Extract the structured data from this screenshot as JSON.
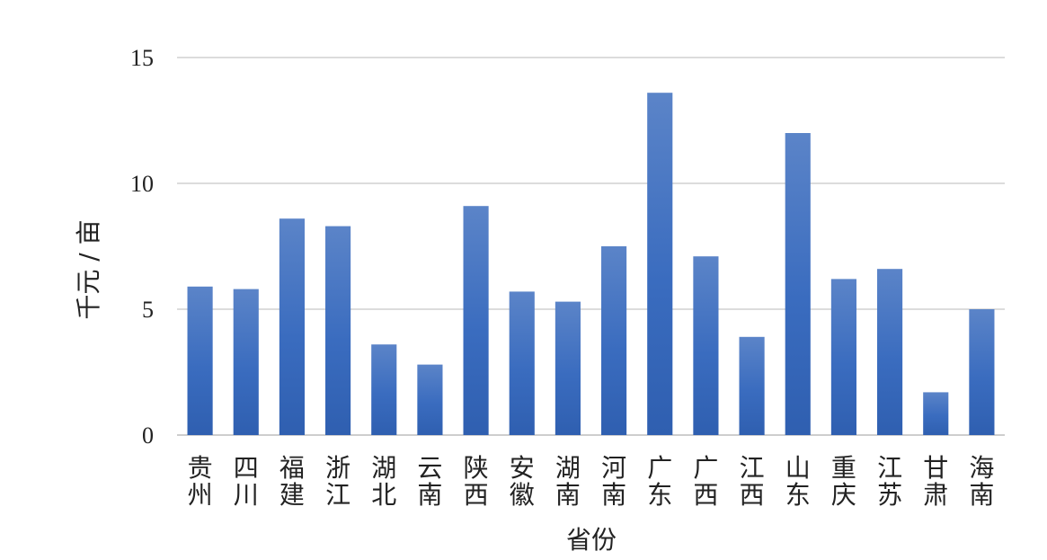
{
  "chart_data": {
    "type": "bar",
    "title": "",
    "xlabel": "省份",
    "ylabel": "千元 / 亩",
    "ylim": [
      0,
      15
    ],
    "yticks": [
      0,
      5,
      10,
      15
    ],
    "grid": true,
    "legend": "none",
    "categories": [
      "贵州",
      "四川",
      "福建",
      "浙江",
      "湖北",
      "云南",
      "陕西",
      "安徽",
      "湖南",
      "河南",
      "广东",
      "广西",
      "江西",
      "山东",
      "重庆",
      "江苏",
      "甘肃",
      "海南"
    ],
    "values": [
      5.9,
      5.8,
      8.6,
      8.3,
      3.6,
      2.8,
      9.1,
      5.7,
      5.3,
      7.5,
      13.6,
      7.1,
      3.9,
      12.0,
      6.2,
      6.6,
      1.7,
      5.0
    ],
    "bar_color_top": "#5b84c8",
    "bar_color_mid": "#3a6cbf",
    "bar_color_bottom": "#2f5fb0"
  }
}
